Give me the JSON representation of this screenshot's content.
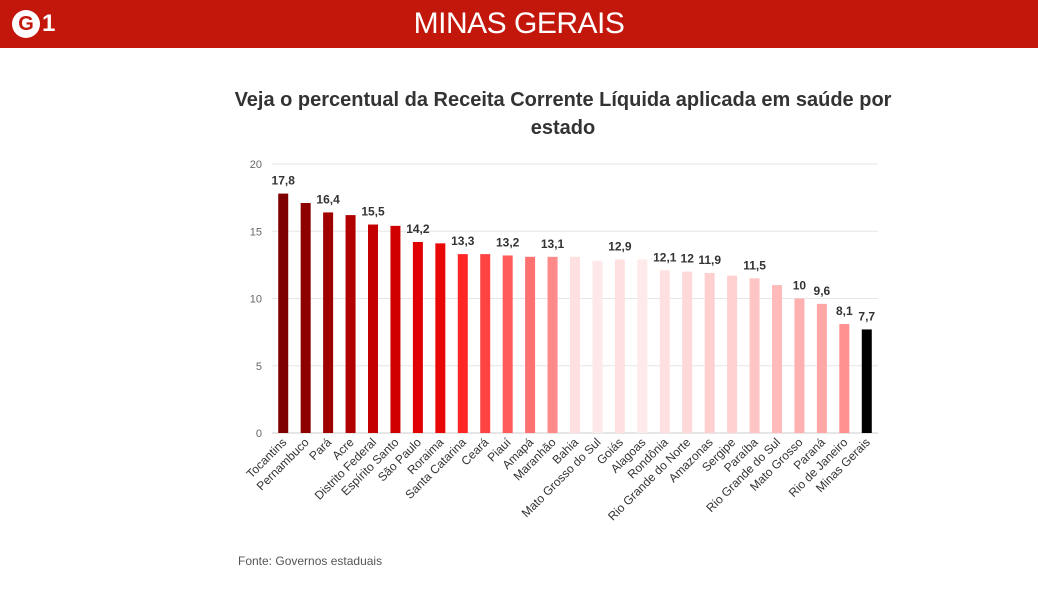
{
  "header": {
    "logo_text": "G1",
    "section": "MINAS GERAIS",
    "brand_color": "#c4170c"
  },
  "chart_data": {
    "type": "bar",
    "title": "Veja o percentual da Receita Corrente Líquida aplicada em saúde por estado",
    "xlabel": "",
    "ylabel": "",
    "ylim": [
      0,
      20
    ],
    "yticks": [
      0,
      5,
      10,
      15,
      20
    ],
    "grid": true,
    "legend": "none",
    "categories": [
      "Tocantins",
      "Pernambuco",
      "Pará",
      "Acre",
      "Distrito Federal",
      "Espírito Santo",
      "São Paulo",
      "Roraima",
      "Santa Catarina",
      "Ceará",
      "Piauí",
      "Amapá",
      "Maranhão",
      "Bahia",
      "Mato Grosso do Sul",
      "Goiás",
      "Alagoas",
      "Rondônia",
      "Rio Grande do Norte",
      "Amazonas",
      "Sergipe",
      "Paraíba",
      "Rio Grande do Sul",
      "Mato Grosso",
      "Paraná",
      "Rio de Janeiro",
      "Minas Gerais"
    ],
    "values": [
      17.8,
      17.1,
      16.4,
      16.2,
      15.5,
      15.4,
      14.2,
      14.1,
      13.3,
      13.3,
      13.2,
      13.1,
      13.1,
      13.1,
      12.8,
      12.9,
      12.9,
      12.1,
      12,
      11.9,
      11.7,
      11.5,
      11,
      10,
      9.6,
      8.1,
      7.7
    ],
    "labels": [
      "17,8",
      "",
      "16,4",
      "",
      "15,5",
      "",
      "14,2",
      "",
      "13,3",
      "",
      "13,2",
      "",
      "13,1",
      "",
      "",
      "12,9",
      "",
      "12,1",
      "12",
      "11,9",
      "",
      "11,5",
      "",
      "10",
      "9,6",
      "8,1",
      "7,7"
    ],
    "colors": [
      "#7f0000",
      "#8c0000",
      "#a10000",
      "#b00000",
      "#c40000",
      "#d10000",
      "#e00000",
      "#e80808",
      "#ff2626",
      "#ff4343",
      "#ff5b5b",
      "#ff7070",
      "#ff8a8a",
      "#ffe0e0",
      "#ffe8e8",
      "#ffe0e0",
      "#ffeaea",
      "#ffe0e0",
      "#ffd8d8",
      "#ffd0d0",
      "#ffd0d0",
      "#ffc4c4",
      "#ffbaba",
      "#ffb0b0",
      "#ffa6a6",
      "#ff9090",
      "#000000"
    ]
  },
  "source": "Fonte: Governos estaduais"
}
